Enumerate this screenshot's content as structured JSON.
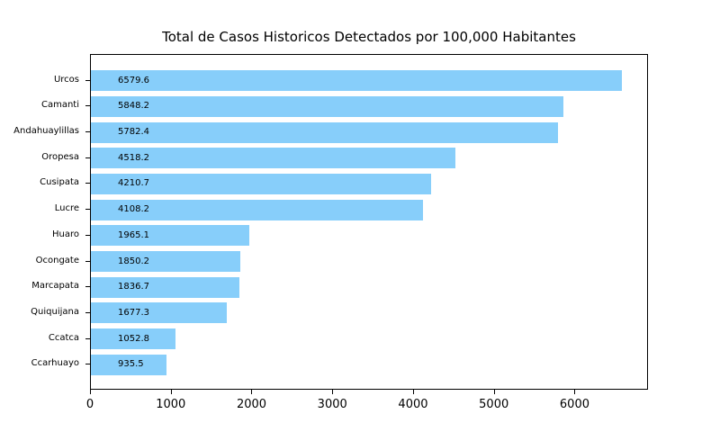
{
  "title": "Total de Casos Historicos Detectados por 100,000 Habitantes",
  "chart_data": {
    "type": "bar",
    "orientation": "horizontal",
    "title": "Total de Casos Historicos Detectados por 100,000 Habitantes",
    "xlabel": "",
    "ylabel": "",
    "categories": [
      "Urcos",
      "Camanti",
      "Andahuaylillas",
      "Oropesa",
      "Cusipata",
      "Lucre",
      "Huaro",
      "Ocongate",
      "Marcapata",
      "Quiquijana",
      "Ccatca",
      "Ccarhuayo"
    ],
    "values": [
      6579.6,
      5848.2,
      5782.4,
      4518.2,
      4210.7,
      4108.2,
      1965.1,
      1850.2,
      1836.7,
      1677.3,
      1052.8,
      935.5
    ],
    "value_labels": [
      "6579.6",
      "5848.2",
      "5782.4",
      "4518.2",
      "4210.7",
      "4108.2",
      "1965.1",
      "1850.2",
      "1836.7",
      "1677.3",
      "1052.8",
      "935.5"
    ],
    "x_ticks": [
      0,
      1000,
      2000,
      3000,
      4000,
      5000,
      6000
    ],
    "xlim": [
      0,
      6908.6
    ],
    "grid": false,
    "legend": null,
    "bar_color": "#87CEFA",
    "value_label_color": "#000000",
    "axis_color": "#000000",
    "background_color": "#ffffff",
    "value_labels_inside_bars": true
  }
}
